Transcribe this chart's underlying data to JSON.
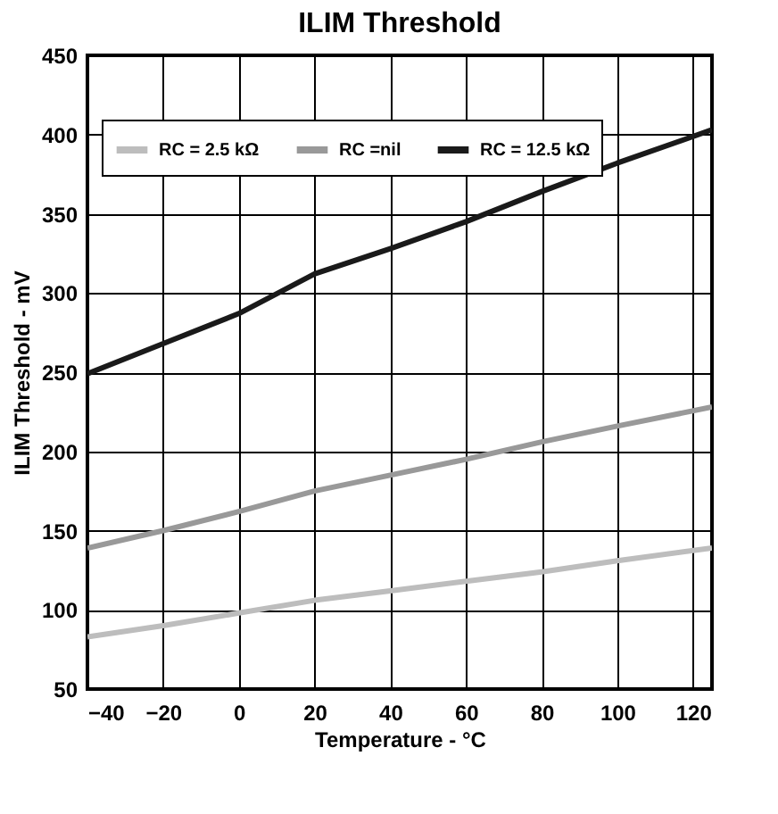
{
  "chart_data": {
    "type": "line",
    "title": "ILIM Threshold",
    "xlabel": "Temperature - °C",
    "ylabel": "ILIM Threshold - mV",
    "x": [
      -40,
      -20,
      0,
      20,
      40,
      60,
      80,
      100,
      125
    ],
    "series": [
      {
        "name": "RC = 2.5 kΩ",
        "color": "#bdbdbd",
        "values": [
          83,
          90,
          98,
          106,
          112,
          118,
          124,
          131,
          139
        ]
      },
      {
        "name": "RC =nil",
        "color": "#999999",
        "values": [
          139,
          150,
          162,
          175,
          185,
          195,
          206,
          216,
          228
        ]
      },
      {
        "name": "RC = 12.5 kΩ",
        "color": "#1a1a1a",
        "values": [
          249,
          268,
          287,
          312,
          328,
          345,
          364,
          382,
          403
        ]
      }
    ],
    "xlim": [
      -40,
      125
    ],
    "xticks": [
      -40,
      -20,
      0,
      20,
      40,
      60,
      80,
      100,
      120
    ],
    "ylim": [
      50,
      450
    ],
    "yticks": [
      50,
      100,
      150,
      200,
      250,
      300,
      350,
      400,
      450
    ],
    "grid": true,
    "legend": "top",
    "marker": "none",
    "line_style": "solid"
  }
}
